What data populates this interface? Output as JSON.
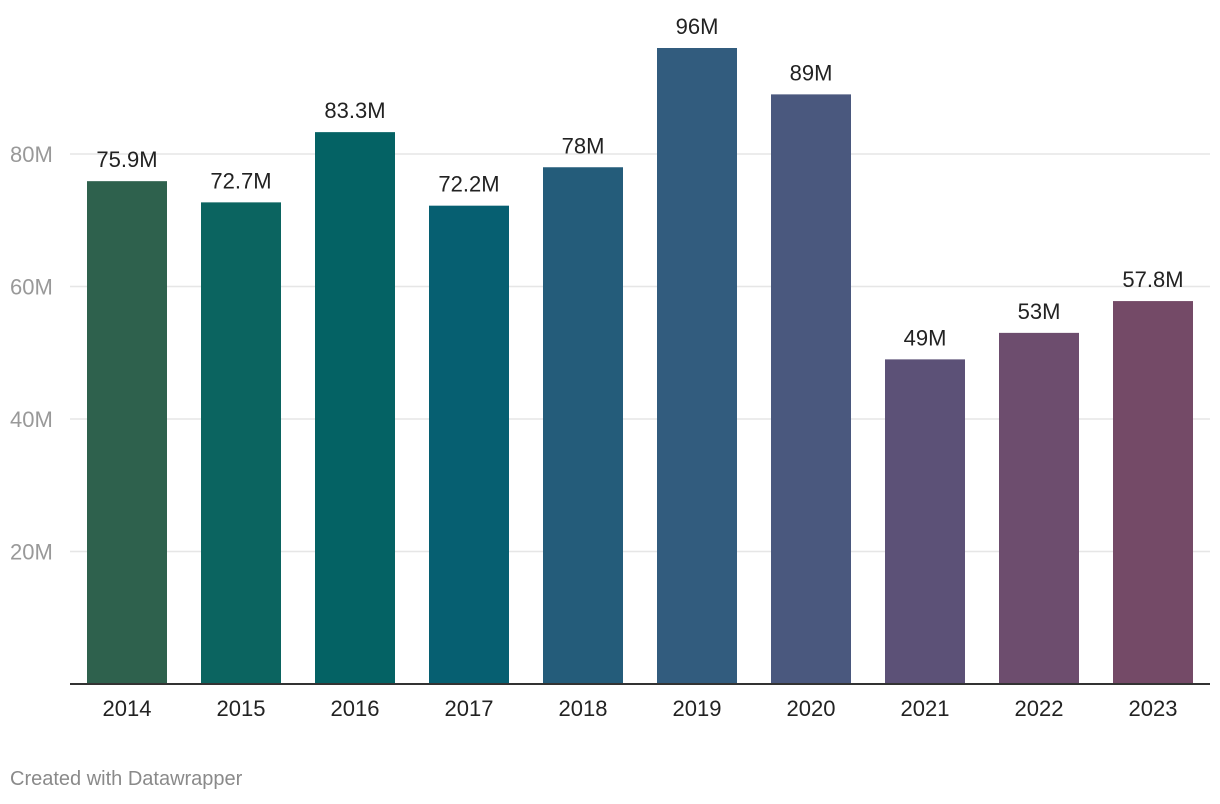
{
  "chart_data": {
    "type": "bar",
    "title": "",
    "xlabel": "",
    "ylabel": "",
    "categories": [
      "2014",
      "2015",
      "2016",
      "2017",
      "2018",
      "2019",
      "2020",
      "2021",
      "2022",
      "2023"
    ],
    "values": [
      75.9,
      72.7,
      83.3,
      72.2,
      78,
      96,
      89,
      49,
      53,
      57.8
    ],
    "value_labels": [
      "75.9M",
      "72.7M",
      "83.3M",
      "72.2M",
      "78M",
      "96M",
      "89M",
      "49M",
      "53M",
      "57.8M"
    ],
    "colors": [
      "#2e614d",
      "#0b6460",
      "#046264",
      "#065f71",
      "#245c7a",
      "#325c7e",
      "#4a587e",
      "#5c5177",
      "#6d4d6e",
      "#744a67"
    ],
    "ylim": [
      0,
      96
    ],
    "yticks": [
      20,
      40,
      60,
      80
    ],
    "ytick_labels": [
      "20M",
      "40M",
      "60M",
      "80M"
    ],
    "grid": true,
    "legend": "none"
  },
  "credit": "Created with Datawrapper",
  "colors": {
    "grid": "#e6e6e6",
    "axis": "#333333",
    "tick_text": "#999999",
    "label_text": "#222222",
    "credit_text": "#8a8a8a"
  }
}
